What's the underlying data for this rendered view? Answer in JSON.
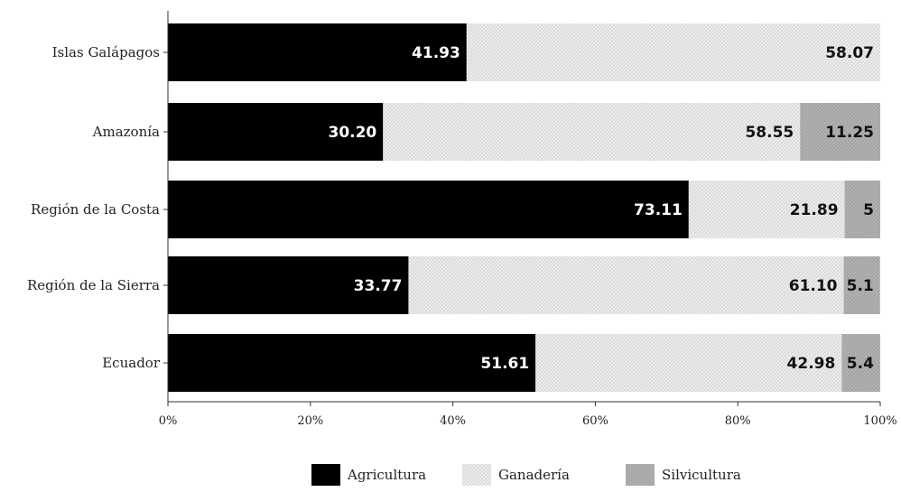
{
  "chart_data": {
    "type": "bar",
    "orientation": "horizontal",
    "stacked": true,
    "percent_stacked": true,
    "categories": [
      "Islas Galápagos",
      "Amazonía",
      "Región de la Costa",
      "Región de la Sierra",
      "Ecuador"
    ],
    "series": [
      {
        "name": "Agricultura",
        "values": [
          41.93,
          30.2,
          73.11,
          33.77,
          51.61
        ],
        "labels": [
          "41.93",
          "30.20",
          "73.11",
          "33.77",
          "51.61"
        ]
      },
      {
        "name": "Ganadería",
        "values": [
          58.07,
          58.55,
          21.89,
          61.1,
          42.98
        ],
        "labels": [
          "58.07",
          "58.55",
          "21.89",
          "61.10",
          "42.98"
        ]
      },
      {
        "name": "Silvicultura",
        "values": [
          0,
          11.25,
          5,
          5.1,
          5.4
        ],
        "labels": [
          "",
          "11.25",
          "5",
          "5.1",
          "5.4"
        ]
      }
    ],
    "xlim": [
      0,
      100
    ],
    "x_ticks": [
      "0%",
      "20%",
      "40%",
      "60%",
      "80%",
      "100%"
    ],
    "legend_position": "bottom",
    "grid": false,
    "colors": {
      "Agricultura": "#000000",
      "Ganadería": "#e6e6e6",
      "Silvicultura": "#a8a8a8"
    }
  }
}
